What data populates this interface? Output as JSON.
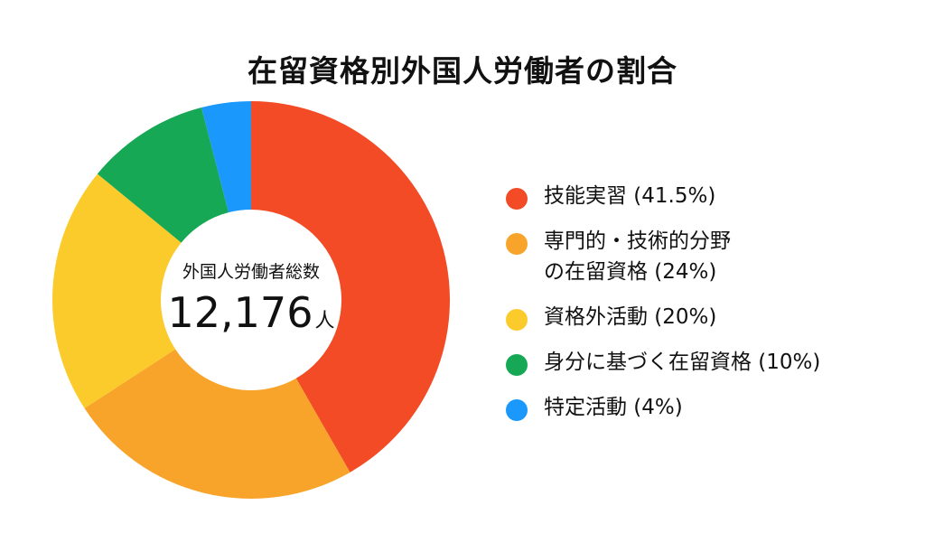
{
  "title": "在留資格別外国人労働者の割合",
  "center": {
    "caption": "外国人労働者総数",
    "total": "12,176",
    "unit": "人"
  },
  "legend": [
    {
      "label": "技能実習 (41.5%)",
      "color": "#F24B25"
    },
    {
      "label": "専門的・技術的分野\nの在留資格 (24%)",
      "color": "#F8A42B"
    },
    {
      "label": "資格外活動 (20%)",
      "color": "#FBCB2C"
    },
    {
      "label": "身分に基づく在留資格 (10%)",
      "color": "#16A854"
    },
    {
      "label": "特定活動 (4%)",
      "color": "#1A98FB"
    }
  ],
  "chart_data": {
    "type": "pie",
    "title": "在留資格別外国人労働者の割合",
    "categories": [
      "技能実習",
      "専門的・技術的分野の在留資格",
      "資格外活動",
      "身分に基づく在留資格",
      "特定活動"
    ],
    "values": [
      41.5,
      24,
      20,
      10,
      4
    ],
    "colors": [
      "#F24B25",
      "#F8A42B",
      "#FBCB2C",
      "#16A854",
      "#1A98FB"
    ],
    "donut": true,
    "legend_position": "right"
  }
}
